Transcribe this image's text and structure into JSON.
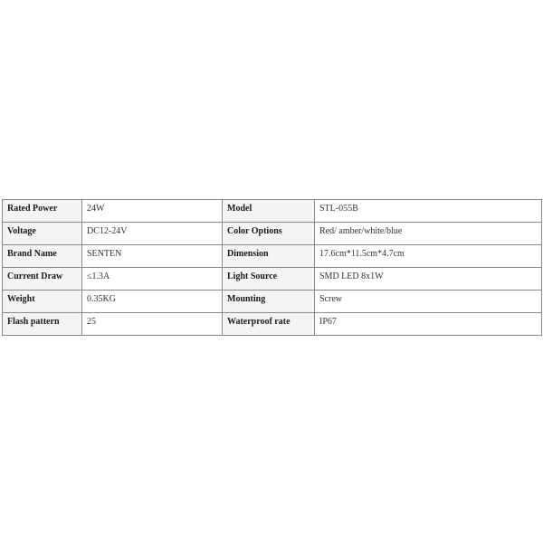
{
  "spec_table": {
    "rows": [
      {
        "label1": "Rated Power",
        "value1": "24W",
        "label2": "Model",
        "value2": "STL-055B"
      },
      {
        "label1": "Voltage",
        "value1": "DC12-24V",
        "label2": "Color Options",
        "value2": "Red/ amber/white/blue"
      },
      {
        "label1": "Brand Name",
        "value1": "SENTEN",
        "label2": "Dimension",
        "value2": "17.6cm*11.5cm*4.7cm"
      },
      {
        "label1": "Current Draw",
        "value1": "≤1.3A",
        "label2": "Light Source",
        "value2": "SMD LED 8x1W"
      },
      {
        "label1": "Weight",
        "value1": "0.35KG",
        "label2": "Mounting",
        "value2": "Screw"
      },
      {
        "label1": "Flash pattern",
        "value1": "25",
        "label2": "Waterproof rate",
        "value2": "IP67"
      }
    ]
  }
}
